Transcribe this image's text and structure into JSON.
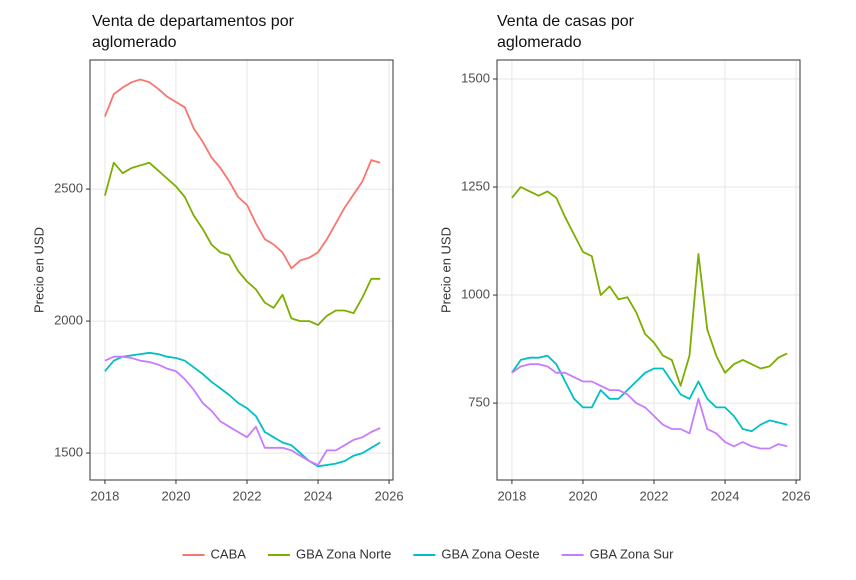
{
  "chart_data": [
    {
      "type": "line",
      "title": [
        "Venta de departamentos por",
        "aglomerado"
      ],
      "y_label": "Precio en USD",
      "x": [
        2018,
        2018.25,
        2018.5,
        2018.75,
        2019,
        2019.25,
        2019.5,
        2019.75,
        2020,
        2020.25,
        2020.5,
        2020.75,
        2021,
        2021.25,
        2021.5,
        2021.75,
        2022,
        2022.25,
        2022.5,
        2022.75,
        2023,
        2023.25,
        2023.5,
        2023.75,
        2024,
        2024.25,
        2024.5,
        2024.75,
        2025,
        2025.25,
        2025.5,
        2025.75
      ],
      "xlim": [
        2017.58,
        2026.11
      ],
      "xticks": [
        2018,
        2020,
        2022,
        2024,
        2026
      ],
      "ylim": [
        1398,
        2989
      ],
      "yticks": [
        1500,
        2000,
        2500
      ],
      "grid": true,
      "legend": "bottom",
      "series": [
        {
          "name": "CABA",
          "color": "#f8766d",
          "values": [
            2775,
            2860,
            2885,
            2905,
            2915,
            2905,
            2880,
            2850,
            2830,
            2810,
            2730,
            2680,
            2620,
            2580,
            2530,
            2470,
            2440,
            2370,
            2310,
            2290,
            2260,
            2200,
            2230,
            2240,
            2260,
            2310,
            2370,
            2430,
            2480,
            2530,
            2610,
            2600
          ]
        },
        {
          "name": "GBA Zona Norte",
          "color": "#7cae00",
          "values": [
            2475,
            2600,
            2560,
            2580,
            2590,
            2600,
            2570,
            2540,
            2510,
            2470,
            2400,
            2350,
            2290,
            2260,
            2250,
            2190,
            2150,
            2120,
            2070,
            2050,
            2100,
            2010,
            2000,
            2000,
            1985,
            2020,
            2040,
            2040,
            2030,
            2090,
            2160,
            2160
          ]
        },
        {
          "name": "GBA Zona Oeste",
          "color": "#00bfc4",
          "values": [
            1810,
            1850,
            1865,
            1870,
            1875,
            1880,
            1875,
            1865,
            1860,
            1850,
            1825,
            1800,
            1770,
            1745,
            1720,
            1690,
            1670,
            1640,
            1580,
            1560,
            1540,
            1530,
            1500,
            1470,
            1450,
            1455,
            1460,
            1470,
            1490,
            1500,
            1520,
            1540
          ]
        },
        {
          "name": "GBA Zona Sur",
          "color": "#c77cff",
          "values": [
            1850,
            1865,
            1865,
            1860,
            1850,
            1845,
            1835,
            1820,
            1810,
            1780,
            1740,
            1690,
            1660,
            1620,
            1600,
            1580,
            1560,
            1600,
            1520,
            1520,
            1520,
            1510,
            1490,
            1470,
            1455,
            1510,
            1510,
            1530,
            1550,
            1560,
            1580,
            1595
          ]
        }
      ]
    },
    {
      "type": "line",
      "title": [
        "Venta de casas por",
        "aglomerado"
      ],
      "y_label": "Precio en USD",
      "x": [
        2018,
        2018.25,
        2018.5,
        2018.75,
        2019,
        2019.25,
        2019.5,
        2019.75,
        2020,
        2020.25,
        2020.5,
        2020.75,
        2021,
        2021.25,
        2021.5,
        2021.75,
        2022,
        2022.25,
        2022.5,
        2022.75,
        2023,
        2023.25,
        2023.5,
        2023.75,
        2024,
        2024.25,
        2024.5,
        2024.75,
        2025,
        2025.25,
        2025.5,
        2025.75
      ],
      "xlim": [
        2017.58,
        2026.11
      ],
      "xticks": [
        2018,
        2020,
        2022,
        2024,
        2026
      ],
      "ylim": [
        572,
        1544
      ],
      "yticks": [
        750,
        1000,
        1250,
        1500
      ],
      "grid": true,
      "series": [
        {
          "name": "GBA Zona Norte",
          "color": "#7cae00",
          "values": [
            1225,
            1250,
            1240,
            1230,
            1240,
            1225,
            1180,
            1140,
            1100,
            1090,
            1000,
            1020,
            990,
            995,
            960,
            910,
            890,
            860,
            850,
            790,
            860,
            1095,
            920,
            860,
            820,
            840,
            850,
            840,
            830,
            835,
            855,
            865
          ]
        },
        {
          "name": "GBA Zona Oeste",
          "color": "#00bfc4",
          "values": [
            820,
            850,
            855,
            855,
            860,
            840,
            800,
            760,
            740,
            740,
            780,
            760,
            760,
            780,
            800,
            820,
            830,
            830,
            800,
            770,
            760,
            800,
            760,
            740,
            740,
            720,
            690,
            685,
            700,
            710,
            705,
            700
          ]
        },
        {
          "name": "GBA Zona Sur",
          "color": "#c77cff",
          "values": [
            820,
            835,
            840,
            840,
            835,
            820,
            820,
            810,
            800,
            800,
            790,
            780,
            780,
            770,
            750,
            740,
            720,
            700,
            690,
            690,
            680,
            760,
            690,
            680,
            660,
            650,
            660,
            650,
            645,
            645,
            655,
            650
          ]
        }
      ]
    }
  ]
}
